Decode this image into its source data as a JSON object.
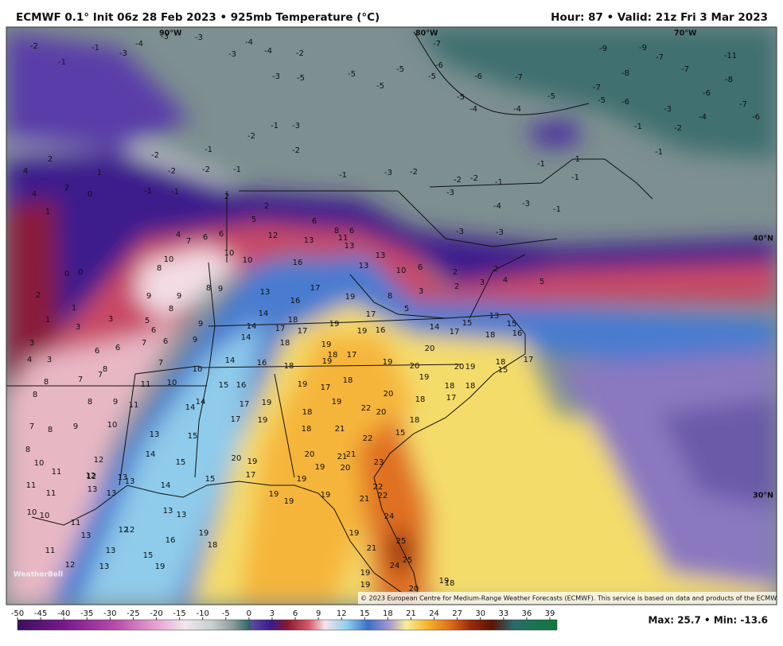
{
  "header": {
    "title": "ECMWF 0.1° Init 06z 28 Feb 2023 • 925mb Temperature (°C)",
    "valid": "Hour: 87 • Valid: 21z Fri 3 Mar 2023"
  },
  "gridlabels": [
    "90°W",
    "80°W",
    "70°W",
    "40°N",
    "30°N"
  ],
  "copyright": "© 2023 European Centre for Medium-Range Weather Forecasts (ECMWF). This service is based on data and products of the ECMWF.",
  "logo": "WeatherBell",
  "stats": "Max: 25.7 • Min: -13.6",
  "colorbar": {
    "ticks": [
      -50,
      -45,
      -40,
      -35,
      -30,
      -25,
      -20,
      -15,
      -10,
      -5,
      0,
      3,
      6,
      9,
      12,
      15,
      18,
      21,
      24,
      27,
      30,
      33,
      36,
      39
    ]
  },
  "map_values": [
    -2,
    -1,
    -1,
    -3,
    -4,
    -3,
    -3,
    -3,
    -4,
    -4,
    -2,
    -5,
    -3,
    -5,
    -5,
    -5,
    -7,
    -6,
    -5,
    -6,
    -7,
    -5,
    -4,
    -4,
    -5,
    -7,
    -5,
    -6,
    -9,
    -8,
    -9,
    -7,
    -7,
    -8,
    -11,
    -7,
    -6,
    -6,
    -4,
    -2,
    -3,
    -1,
    -1,
    -1,
    -1,
    -1,
    -1,
    -2,
    -2,
    -3,
    -4,
    -3,
    -3,
    -3,
    -1,
    -2,
    -3,
    -1,
    -2,
    -1,
    -3,
    -2,
    -1,
    -1,
    -2,
    -2,
    -2,
    -1,
    -1,
    4,
    4,
    2,
    2,
    1,
    1,
    0,
    0,
    2,
    0,
    1,
    1,
    3,
    3,
    3,
    4,
    3,
    6,
    6,
    5,
    6,
    7,
    7,
    6,
    4,
    7,
    6,
    6,
    10,
    8,
    9,
    9,
    8,
    8,
    9,
    10,
    10,
    5,
    2,
    2,
    12,
    13,
    16,
    6,
    8,
    6,
    11,
    13,
    13,
    13,
    10,
    6,
    8,
    5,
    3,
    2,
    2,
    3,
    2,
    4,
    5,
    13,
    16,
    17,
    19,
    17,
    18,
    14,
    14,
    17,
    17,
    19,
    19,
    16,
    18,
    14,
    19,
    18,
    17,
    14,
    16,
    18,
    19,
    19,
    20,
    20,
    14,
    15,
    17,
    13,
    15,
    18,
    16,
    9,
    9,
    10,
    10,
    11,
    8,
    7,
    7,
    8,
    8,
    8,
    9,
    11,
    7,
    8,
    9,
    10,
    15,
    16,
    14,
    14,
    17,
    19,
    17,
    18,
    19,
    20,
    18,
    19,
    18,
    18,
    17,
    20,
    19,
    15,
    18,
    17,
    17,
    19,
    18,
    19,
    22,
    20,
    18,
    18,
    21,
    22,
    15,
    13,
    15,
    14,
    15,
    12,
    12,
    13,
    13,
    14,
    15,
    20,
    19,
    17,
    20,
    21,
    21,
    19,
    20,
    23,
    19,
    22,
    22,
    21,
    19,
    19,
    19,
    24,
    19,
    21,
    25,
    25,
    24,
    20,
    19,
    19,
    19,
    18,
    8,
    10,
    11,
    11,
    11,
    10,
    10,
    11,
    13,
    12,
    12,
    12,
    13,
    13,
    13,
    13,
    19,
    16,
    18,
    11,
    13,
    15,
    12,
    13,
    19
  ]
}
